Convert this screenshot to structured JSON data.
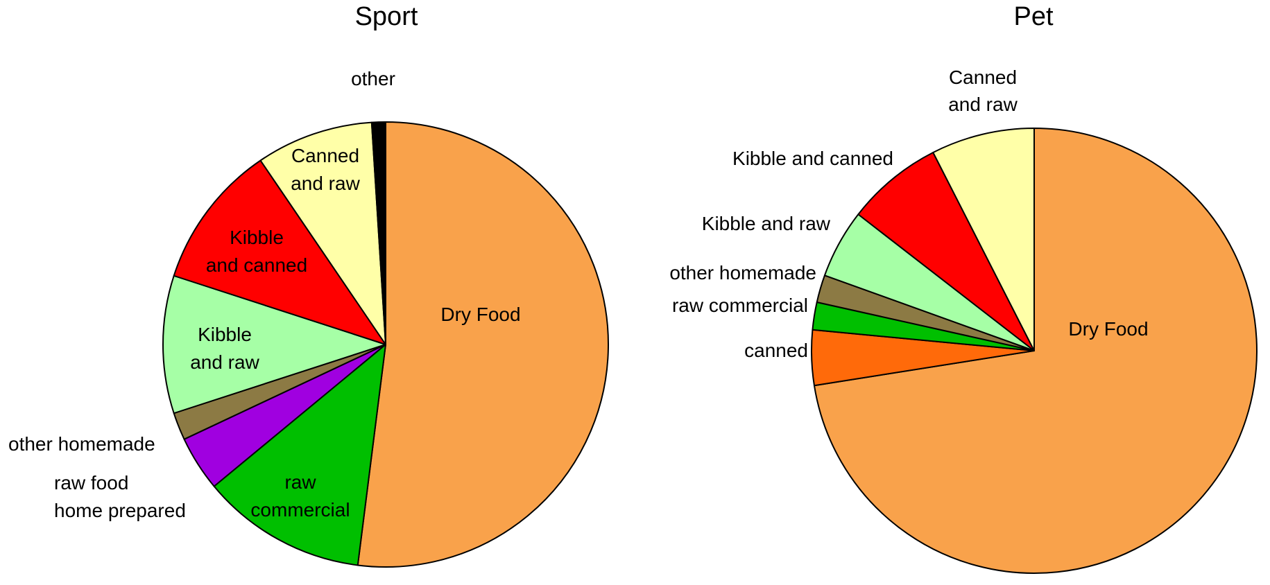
{
  "chart_data": [
    {
      "type": "pie",
      "title": "Sport",
      "direction": "clockwise from 12 o'clock",
      "slices": [
        {
          "label": "Dry Food",
          "value": 52.0,
          "color": "#F9A24B"
        },
        {
          "label": "raw commercial",
          "value": 12.0,
          "color": "#00BF00"
        },
        {
          "label": "raw food home prepared",
          "value": 4.0,
          "color": "#A000E0"
        },
        {
          "label": "other homemade",
          "value": 2.0,
          "color": "#8C7A44"
        },
        {
          "label": "Kibble and raw",
          "value": 10.0,
          "color": "#A6FFA6"
        },
        {
          "label": "Kibble and canned",
          "value": 10.5,
          "color": "#FF0000"
        },
        {
          "label": "Canned and raw",
          "value": 8.5,
          "color": "#FFFFA8"
        },
        {
          "label": "other",
          "value": 1.0,
          "color": "#000000"
        }
      ]
    },
    {
      "type": "pie",
      "title": "Pet",
      "direction": "clockwise from 12 o'clock",
      "slices": [
        {
          "label": "Dry Food",
          "value": 72.5,
          "color": "#F9A24B"
        },
        {
          "label": "canned",
          "value": 4.0,
          "color": "#FF6A0A"
        },
        {
          "label": "raw commercial",
          "value": 2.0,
          "color": "#00BF00"
        },
        {
          "label": "other homemade",
          "value": 2.0,
          "color": "#8C7A44"
        },
        {
          "label": "Kibble and raw",
          "value": 5.0,
          "color": "#A6FFA6"
        },
        {
          "label": "Kibble and canned",
          "value": 7.0,
          "color": "#FF0000"
        },
        {
          "label": "Canned and raw",
          "value": 7.5,
          "color": "#FFFFA8"
        }
      ]
    }
  ],
  "labels": {
    "sport": {
      "title": "Sport",
      "dry_food": "Dry Food",
      "raw_commercial_1": "raw",
      "raw_commercial_2": "commercial",
      "raw_food_1": "raw food",
      "raw_food_2": "home prepared",
      "other_homemade": "other homemade",
      "kibble_raw_1": "Kibble",
      "kibble_raw_2": "and raw",
      "kibble_canned_1": "Kibble",
      "kibble_canned_2": "and canned",
      "canned_raw_1": "Canned",
      "canned_raw_2": "and raw",
      "other": "other"
    },
    "pet": {
      "title": "Pet",
      "dry_food": "Dry Food",
      "canned": "canned",
      "raw_commercial": "raw commercial",
      "other_homemade": "other homemade",
      "kibble_raw": "Kibble and raw",
      "kibble_canned": "Kibble and canned",
      "canned_raw_1": "Canned",
      "canned_raw_2": "and raw"
    }
  }
}
